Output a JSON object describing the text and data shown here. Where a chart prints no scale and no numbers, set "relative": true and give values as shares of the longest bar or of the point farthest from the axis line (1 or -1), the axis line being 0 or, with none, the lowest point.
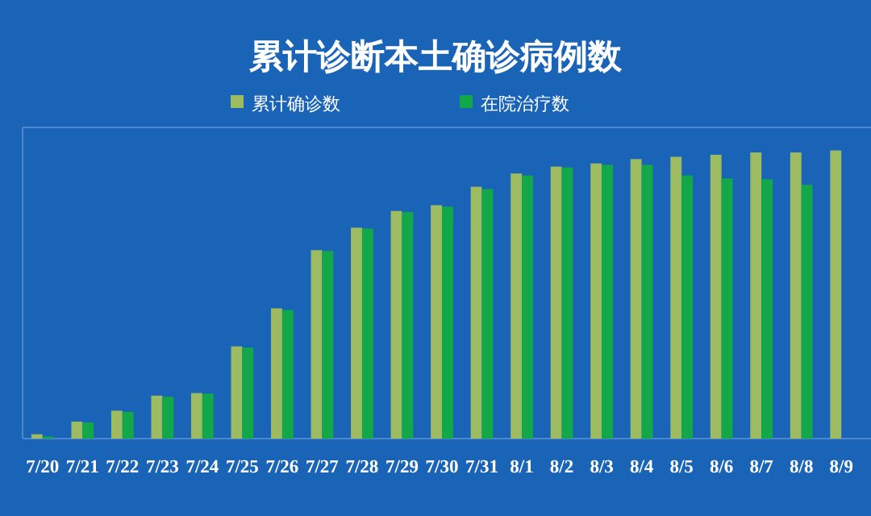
{
  "chart_data": {
    "type": "bar",
    "title": "累计诊断本土确诊病例数",
    "relative": true,
    "legend": "top",
    "categories": [
      "7/20",
      "7/21",
      "7/22",
      "7/23",
      "7/24",
      "7/25",
      "7/26",
      "7/27",
      "7/28",
      "7/29",
      "7/30",
      "7/31",
      "8/1",
      "8/2",
      "8/3",
      "8/4",
      "8/5",
      "8/6",
      "8/7",
      "8/8",
      "8/9"
    ],
    "series": [
      {
        "name": "累计确诊数",
        "color": "#9dbb61",
        "values": [
          0.015,
          0.059,
          0.097,
          0.149,
          0.158,
          0.32,
          0.452,
          0.654,
          0.732,
          0.79,
          0.81,
          0.874,
          0.92,
          0.944,
          0.955,
          0.97,
          0.978,
          0.985,
          0.993,
          0.993,
          1
        ]
      },
      {
        "name": "在院治疗数",
        "color": "#12a84a",
        "values": [
          0.007,
          0.056,
          0.093,
          0.145,
          0.156,
          0.316,
          0.446,
          0.651,
          0.729,
          0.786,
          0.805,
          0.866,
          0.913,
          0.941,
          0.95,
          0.95,
          0.913,
          0.903,
          0.9,
          0.881,
          null
        ]
      }
    ]
  }
}
